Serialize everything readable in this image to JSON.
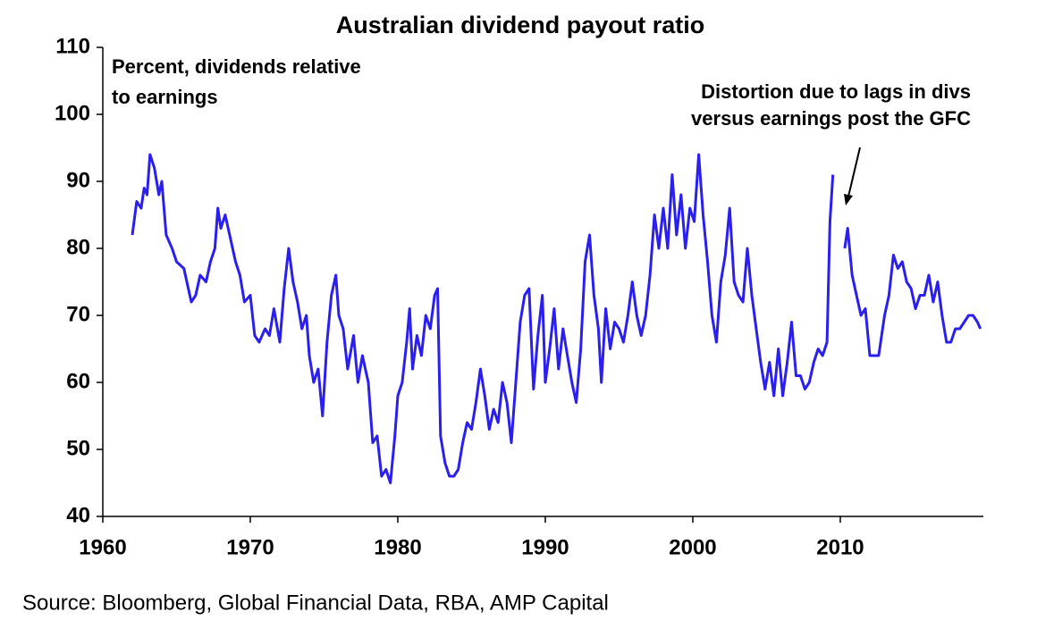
{
  "chart_data": {
    "type": "line",
    "title": "Australian dividend payout ratio",
    "annotations": [
      {
        "lines": [
          "Percent, dividends relative",
          "to earnings"
        ]
      },
      {
        "lines": [
          "Distortion due to lags in divs",
          "versus earnings post the GFC"
        ]
      }
    ],
    "source": "Source: Bloomberg, Global Financial Data, RBA, AMP Capital",
    "color": "#2b1ff0",
    "x": [
      1962.0,
      1962.3,
      1962.6,
      1962.8,
      1963.0,
      1963.2,
      1963.5,
      1963.8,
      1964.0,
      1964.3,
      1964.7,
      1965.0,
      1965.5,
      1966.0,
      1966.3,
      1966.6,
      1967.0,
      1967.3,
      1967.6,
      1967.8,
      1968.0,
      1968.3,
      1968.6,
      1969.0,
      1969.3,
      1969.6,
      1970.0,
      1970.3,
      1970.6,
      1971.0,
      1971.3,
      1971.6,
      1972.0,
      1972.3,
      1972.6,
      1972.9,
      1973.2,
      1973.5,
      1973.8,
      1974.0,
      1974.3,
      1974.6,
      1974.9,
      1975.2,
      1975.5,
      1975.8,
      1976.0,
      1976.3,
      1976.6,
      1977.0,
      1977.3,
      1977.6,
      1978.0,
      1978.3,
      1978.6,
      1978.9,
      1979.2,
      1979.5,
      1979.8,
      1980.0,
      1980.3,
      1980.6,
      1980.8,
      1981.0,
      1981.3,
      1981.6,
      1981.9,
      1982.2,
      1982.5,
      1982.7,
      1982.9,
      1983.2,
      1983.5,
      1983.8,
      1984.1,
      1984.4,
      1984.7,
      1985.0,
      1985.3,
      1985.6,
      1985.9,
      1986.2,
      1986.5,
      1986.8,
      1987.1,
      1987.4,
      1987.7,
      1988.0,
      1988.3,
      1988.6,
      1988.9,
      1989.2,
      1989.5,
      1989.8,
      1990.0,
      1990.3,
      1990.6,
      1990.9,
      1991.2,
      1991.5,
      1991.8,
      1992.1,
      1992.4,
      1992.7,
      1993.0,
      1993.3,
      1993.6,
      1993.8,
      1994.1,
      1994.4,
      1994.7,
      1995.0,
      1995.3,
      1995.6,
      1995.9,
      1996.2,
      1996.5,
      1996.8,
      1997.1,
      1997.4,
      1997.7,
      1998.0,
      1998.3,
      1998.6,
      1998.9,
      1999.2,
      1999.5,
      1999.8,
      2000.1,
      2000.4,
      2000.7,
      2001.0,
      2001.3,
      2001.6,
      2001.9,
      2002.2,
      2002.5,
      2002.8,
      2003.1,
      2003.4,
      2003.7,
      2004.0,
      2004.3,
      2004.6,
      2004.9,
      2005.2,
      2005.5,
      2005.8,
      2006.1,
      2006.4,
      2006.7,
      2007.0,
      2007.3,
      2007.6,
      2007.9,
      2008.2,
      2008.5,
      2008.8,
      2009.1,
      2009.3,
      2009.5,
      2009.9,
      2010.3,
      2010.5,
      2010.8,
      2011.1,
      2011.4,
      2011.7,
      2012.0,
      2012.3,
      2012.6,
      2013.0,
      2013.3,
      2013.6,
      2013.9,
      2014.2,
      2014.5,
      2014.8,
      2015.1,
      2015.4,
      2015.7,
      2016.0,
      2016.3,
      2016.6,
      2016.9,
      2017.2,
      2017.5,
      2017.8,
      2018.1,
      2018.4,
      2018.7,
      2019.0,
      2019.3,
      2019.5
    ],
    "values": [
      82,
      87,
      86,
      89,
      88,
      94,
      92,
      88,
      90,
      82,
      80,
      78,
      77,
      72,
      73,
      76,
      75,
      78,
      80,
      86,
      83,
      85,
      82,
      78,
      76,
      72,
      73,
      67,
      66,
      68,
      67,
      71,
      66,
      74,
      80,
      75,
      72,
      68,
      70,
      64,
      60,
      62,
      55,
      66,
      73,
      76,
      70,
      68,
      62,
      67,
      60,
      64,
      60,
      51,
      52,
      46,
      47,
      45,
      52,
      58,
      60,
      66,
      71,
      62,
      67,
      64,
      70,
      68,
      73,
      74,
      52,
      48,
      46,
      46,
      47,
      51,
      54,
      53,
      57,
      62,
      58,
      53,
      56,
      54,
      60,
      57,
      51,
      60,
      69,
      73,
      74,
      59,
      67,
      73,
      60,
      65,
      71,
      62,
      68,
      64,
      60,
      57,
      65,
      78,
      82,
      73,
      68,
      60,
      71,
      65,
      69,
      68,
      66,
      70,
      75,
      70,
      67,
      70,
      76,
      85,
      80,
      86,
      80,
      91,
      82,
      88,
      80,
      86,
      84,
      94,
      85,
      78,
      70,
      66,
      75,
      79,
      86,
      75,
      73,
      72,
      80,
      73,
      68,
      63,
      59,
      63,
      58,
      65,
      58,
      63,
      69,
      61,
      61,
      59,
      60,
      63,
      65,
      64,
      66,
      84,
      91,
      null,
      80,
      83,
      76,
      73,
      70,
      71,
      64,
      64,
      64,
      70,
      73,
      79,
      77,
      78,
      75,
      74,
      71,
      73,
      73,
      76,
      72,
      75,
      70,
      66,
      66,
      68,
      68,
      69,
      70,
      70,
      69,
      68
    ],
    "xlim": [
      1960,
      2019.7
    ],
    "xticks": [
      1960,
      1970,
      1980,
      1990,
      2000,
      2010
    ],
    "ylim": [
      40,
      110
    ],
    "yticks": [
      40,
      50,
      60,
      70,
      80,
      90,
      100,
      110
    ]
  }
}
